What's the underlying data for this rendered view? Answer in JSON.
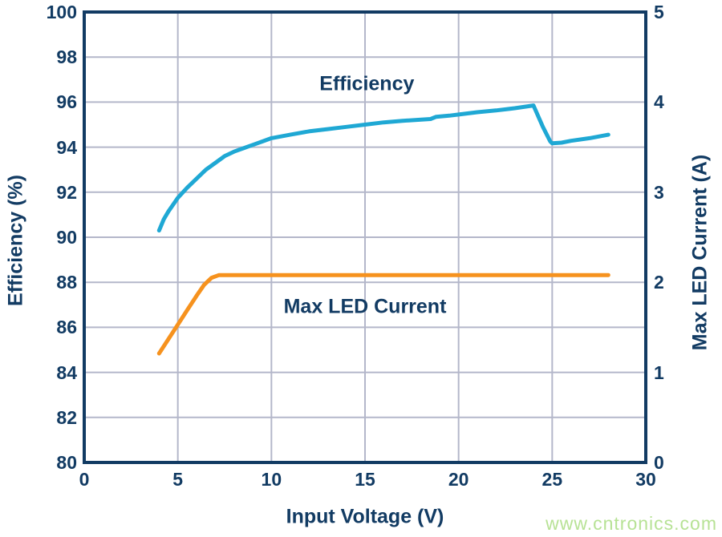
{
  "watermark": "www.cntronics.com",
  "colors": {
    "axis_navy": "#123b63",
    "grid": "#b4b7ca",
    "efficiency_line": "#1fa8d4",
    "current_line": "#f6921e",
    "watermark_green": "#b7e295",
    "background": "#ffffff"
  },
  "chart_data": {
    "type": "line",
    "title": "",
    "xlabel": "Input Voltage (V)",
    "ylabel_left": "Efficiency (%)",
    "ylabel_right": "Max LED Current (A)",
    "x_range": [
      0,
      30
    ],
    "y_left_range": [
      80,
      100
    ],
    "y_right_range": [
      0,
      5
    ],
    "x_ticks": [
      0,
      5,
      10,
      15,
      20,
      25,
      30
    ],
    "y_left_ticks": [
      80,
      82,
      84,
      86,
      88,
      90,
      92,
      94,
      96,
      98,
      100
    ],
    "y_right_ticks": [
      0,
      1,
      2,
      3,
      4,
      5
    ],
    "grid": true,
    "legend": "inline-annotations",
    "series": [
      {
        "name": "Efficiency",
        "axis": "left",
        "color": "#1fa8d4",
        "points": [
          [
            4,
            90.3
          ],
          [
            4.25,
            90.8
          ],
          [
            4.5,
            91.15
          ],
          [
            5,
            91.75
          ],
          [
            5.5,
            92.2
          ],
          [
            6,
            92.6
          ],
          [
            6.5,
            93.0
          ],
          [
            7,
            93.3
          ],
          [
            7.5,
            93.6
          ],
          [
            8,
            93.8
          ],
          [
            8.5,
            93.95
          ],
          [
            9,
            94.1
          ],
          [
            9.5,
            94.25
          ],
          [
            10,
            94.4
          ],
          [
            11,
            94.55
          ],
          [
            12,
            94.7
          ],
          [
            13,
            94.8
          ],
          [
            14,
            94.9
          ],
          [
            15,
            95.0
          ],
          [
            16,
            95.1
          ],
          [
            17,
            95.17
          ],
          [
            18,
            95.22
          ],
          [
            18.5,
            95.25
          ],
          [
            18.8,
            95.35
          ],
          [
            19.5,
            95.4
          ],
          [
            20,
            95.45
          ],
          [
            21,
            95.55
          ],
          [
            22,
            95.63
          ],
          [
            23,
            95.73
          ],
          [
            24,
            95.85
          ],
          [
            24.5,
            94.9
          ],
          [
            24.9,
            94.25
          ],
          [
            25,
            94.17
          ],
          [
            25.5,
            94.2
          ],
          [
            26,
            94.28
          ],
          [
            27,
            94.4
          ],
          [
            28,
            94.55
          ]
        ]
      },
      {
        "name": "Max LED Current",
        "axis": "right",
        "color": "#f6921e",
        "points": [
          [
            4,
            1.21
          ],
          [
            4.5,
            1.37
          ],
          [
            5,
            1.53
          ],
          [
            5.5,
            1.69
          ],
          [
            6,
            1.85
          ],
          [
            6.4,
            1.97
          ],
          [
            6.8,
            2.05
          ],
          [
            7.2,
            2.08
          ],
          [
            8,
            2.08
          ],
          [
            10,
            2.08
          ],
          [
            15,
            2.08
          ],
          [
            20,
            2.08
          ],
          [
            25,
            2.08
          ],
          [
            28,
            2.08
          ]
        ]
      }
    ],
    "annotations": [
      {
        "text": "Efficiency",
        "x": 15.1,
        "y_left": 96.8
      },
      {
        "text": "Max LED Current",
        "x": 15.0,
        "y_left": 86.9
      }
    ]
  }
}
